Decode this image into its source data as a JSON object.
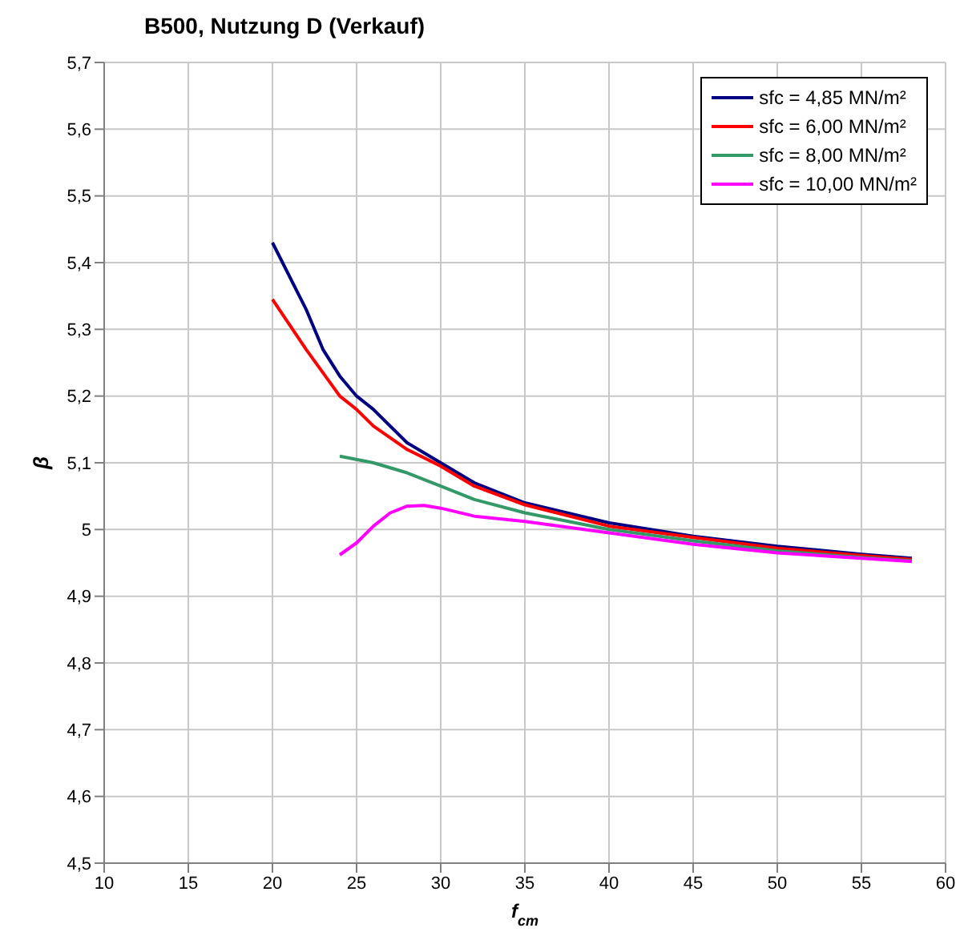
{
  "chart_data": {
    "type": "line",
    "title": "B500, Nutzung D (Verkauf)",
    "xlabel": "f$_{cm}$",
    "ylabel": "β",
    "xlim": [
      10,
      60
    ],
    "xticks": [
      10,
      15,
      20,
      25,
      30,
      35,
      40,
      45,
      50,
      55,
      60
    ],
    "ylim": [
      4.5,
      5.7
    ],
    "yticks": [
      {
        "value": 4.5,
        "label": "4,5"
      },
      {
        "value": 4.6,
        "label": "4,6"
      },
      {
        "value": 4.7,
        "label": "4,7"
      },
      {
        "value": 4.8,
        "label": "4,8"
      },
      {
        "value": 4.9,
        "label": "4,9"
      },
      5,
      {
        "value": 5.1,
        "label": "5,1"
      },
      {
        "value": 5.2,
        "label": "5,2"
      },
      {
        "value": 5.3,
        "label": "5,3"
      },
      {
        "value": 5.4,
        "label": "5,4"
      },
      {
        "value": 5.5,
        "label": "5,5"
      },
      {
        "value": 5.6,
        "label": "5,6"
      },
      {
        "value": 5.7,
        "label": "5,7"
      }
    ],
    "grid": true,
    "legend": "top right",
    "marker": "none",
    "line_style": "solid",
    "series": [
      {
        "name": "sfc = 4,85 MN/m²",
        "color": "#000080",
        "x": [
          20,
          22,
          23,
          24,
          25,
          26,
          28,
          30,
          32,
          35,
          40,
          45,
          50,
          55,
          58
        ],
        "values": [
          5.43,
          5.33,
          5.27,
          5.23,
          5.2,
          5.18,
          5.13,
          5.1,
          5.07,
          5.04,
          5.01,
          4.99,
          4.975,
          4.963,
          4.957
        ]
      },
      {
        "name": "sfc = 6,00 MN/m²",
        "color": "#ff0000",
        "x": [
          20,
          22,
          24,
          25,
          26,
          28,
          30,
          32,
          35,
          40,
          45,
          50,
          55,
          58
        ],
        "values": [
          5.345,
          5.27,
          5.2,
          5.18,
          5.155,
          5.12,
          5.095,
          5.065,
          5.037,
          5.005,
          4.988,
          4.972,
          4.961,
          4.955
        ]
      },
      {
        "name": "sfc = 8,00 MN/m²",
        "color": "#339966",
        "x": [
          24,
          26,
          28,
          30,
          32,
          35,
          40,
          45,
          50,
          55,
          58
        ],
        "values": [
          5.11,
          5.1,
          5.085,
          5.065,
          5.045,
          5.025,
          5,
          4.983,
          4.968,
          4.958,
          4.953
        ]
      },
      {
        "name": "sfc = 10,00 MN/m²",
        "color": "#ff00ff",
        "x": [
          24,
          25,
          26,
          27,
          28,
          29,
          30,
          32,
          35,
          40,
          45,
          50,
          55,
          58
        ],
        "values": [
          4.962,
          4.98,
          5.005,
          5.025,
          5.035,
          5.036,
          5.032,
          5.02,
          5.012,
          4.995,
          4.978,
          4.965,
          4.957,
          4.952
        ]
      }
    ]
  }
}
